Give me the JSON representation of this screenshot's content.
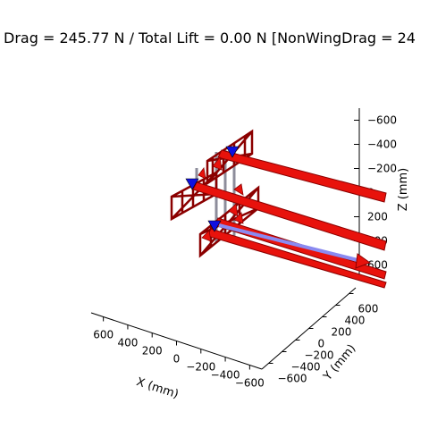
{
  "title": "Drag = 245.77 N / Total Lift = 0.00 N [NonWingDrag = 24",
  "chart_data": {
    "type": "3d-vector-plot",
    "title": "Drag = 245.77 N / Total Lift = 0.00 N [NonWingDrag = 24",
    "xlabel": "X (mm)",
    "ylabel": "Y (mm)",
    "zlabel": "Z (mm)",
    "x_ticks": [
      "600",
      "400",
      "200",
      "0",
      "−200",
      "−400",
      "−600"
    ],
    "y_ticks": [
      "−600",
      "−400",
      "−200",
      "0",
      "200",
      "400",
      "600"
    ],
    "z_ticks": [
      "−600",
      "−400",
      "−200",
      "0",
      "200",
      "400",
      "600"
    ],
    "z_inverted": true,
    "grid": false,
    "colors": {
      "drag_vector": "#e8120c",
      "drag_vector_edge": "#8b0000",
      "frame": "#8b0000",
      "node_marker": "#1010e0",
      "resultant_vector": "#8a8af0",
      "strut": "#7a7a8a"
    }
  }
}
